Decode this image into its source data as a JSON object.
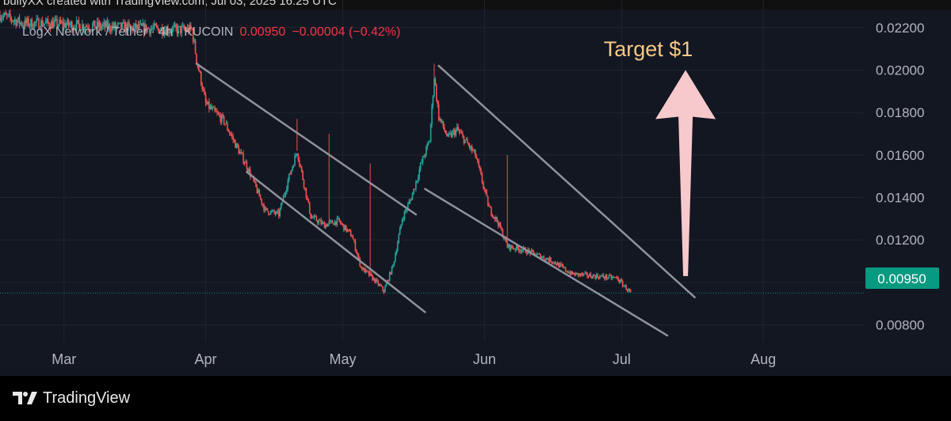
{
  "header": {
    "caption": "bullyXX created with TradingView.com, Jul 03, 2025 16:25 UTC"
  },
  "legend": {
    "symbol": "LogX Network / Tether · 4h · KUCOIN",
    "last": "0.00950",
    "change": "−0.00004 (−0.42%)"
  },
  "annotation": {
    "text": "Target $1",
    "color": "#f5c985"
  },
  "price_tag": {
    "label": "0.00950",
    "color": "#089981"
  },
  "footer": {
    "brand": "TradingView"
  },
  "colors": {
    "background": "#131722",
    "up": "#26a69a",
    "down": "#ef5350",
    "arrow": "#f7c9cc",
    "channel": "#8f929a"
  },
  "chart_data": {
    "type": "candlestick",
    "title": "LogX Network / Tether · 4h · KUCOIN",
    "y_axis": {
      "ticks": [
        "0.02200",
        "0.02000",
        "0.01800",
        "0.01600",
        "0.01400",
        "0.01200",
        "0.01000",
        "0.00800"
      ],
      "range": [
        0.0072,
        0.0233
      ],
      "side": "right"
    },
    "x_axis": {
      "ticks": [
        "Mar",
        "Apr",
        "May",
        "Jun",
        "Jul",
        "Aug"
      ],
      "range": [
        "2025-02-15",
        "2025-08-23"
      ]
    },
    "grid": true,
    "last_price": 0.0095,
    "price_path": [
      [
        "2025-02-15",
        0.0226
      ],
      [
        "2025-02-20",
        0.0222
      ],
      [
        "2025-02-25",
        0.0222
      ],
      [
        "2025-03-05",
        0.0221
      ],
      [
        "2025-03-15",
        0.022
      ],
      [
        "2025-03-25",
        0.0219
      ],
      [
        "2025-03-29",
        0.0219
      ],
      [
        "2025-03-30",
        0.0205
      ],
      [
        "2025-03-31",
        0.0195
      ],
      [
        "2025-04-01",
        0.0184
      ],
      [
        "2025-04-05",
        0.0176
      ],
      [
        "2025-04-08",
        0.0163
      ],
      [
        "2025-04-10",
        0.0155
      ],
      [
        "2025-04-14",
        0.0134
      ],
      [
        "2025-04-17",
        0.0132
      ],
      [
        "2025-04-19",
        0.0148
      ],
      [
        "2025-04-21",
        0.0162
      ],
      [
        "2025-04-24",
        0.0131
      ],
      [
        "2025-04-27",
        0.0127
      ],
      [
        "2025-04-30",
        0.0129
      ],
      [
        "2025-05-03",
        0.0122
      ],
      [
        "2025-05-05",
        0.0107
      ],
      [
        "2025-05-08",
        0.0101
      ],
      [
        "2025-05-10",
        0.0096
      ],
      [
        "2025-05-12",
        0.0108
      ],
      [
        "2025-05-14",
        0.013
      ],
      [
        "2025-05-16",
        0.014
      ],
      [
        "2025-05-17",
        0.0147
      ],
      [
        "2025-05-18",
        0.0155
      ],
      [
        "2025-05-20",
        0.0167
      ],
      [
        "2025-05-21",
        0.0197
      ],
      [
        "2025-05-22",
        0.0178
      ],
      [
        "2025-05-24",
        0.0168
      ],
      [
        "2025-05-26",
        0.0172
      ],
      [
        "2025-05-28",
        0.0166
      ],
      [
        "2025-05-30",
        0.016
      ],
      [
        "2025-06-02",
        0.0135
      ],
      [
        "2025-06-04",
        0.0128
      ],
      [
        "2025-06-06",
        0.0117
      ],
      [
        "2025-06-10",
        0.0115
      ],
      [
        "2025-06-16",
        0.011
      ],
      [
        "2025-06-20",
        0.0104
      ],
      [
        "2025-06-25",
        0.0103
      ],
      [
        "2025-06-30",
        0.0102
      ],
      [
        "2025-07-03",
        0.0095
      ]
    ],
    "spikes": [
      [
        "2025-04-21",
        0.0177
      ],
      [
        "2025-04-28",
        0.017
      ],
      [
        "2025-05-07",
        0.0156
      ],
      [
        "2025-05-21",
        0.0203
      ],
      [
        "2025-06-06",
        0.016
      ]
    ],
    "trendlines": [
      {
        "from": [
          "2025-03-30",
          0.0203
        ],
        "to": [
          "2025-05-17",
          0.0132
        ]
      },
      {
        "from": [
          "2025-04-10",
          0.0152
        ],
        "to": [
          "2025-05-19",
          0.0086
        ]
      },
      {
        "from": [
          "2025-05-22",
          0.0202
        ],
        "to": [
          "2025-07-17",
          0.0093
        ]
      },
      {
        "from": [
          "2025-05-19",
          0.0144
        ],
        "to": [
          "2025-07-11",
          0.0075
        ]
      }
    ],
    "annotations": [
      {
        "type": "arrow-up",
        "from": [
          "2025-07-15",
          0.0103
        ],
        "to": [
          "2025-07-15",
          0.02
        ]
      },
      {
        "type": "text",
        "text": "Target $1"
      }
    ]
  }
}
